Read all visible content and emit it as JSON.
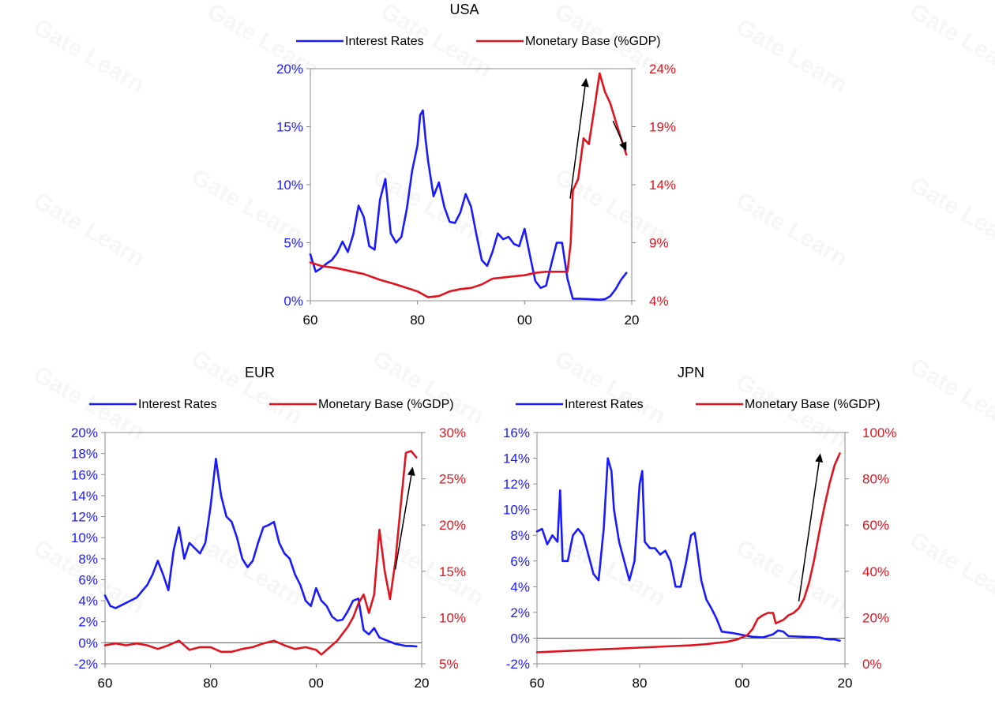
{
  "colors": {
    "interest": "#1a1aff",
    "monetary": "#e0141e",
    "arrow": "#000000",
    "axis": "#8c8c8c"
  },
  "watermark": "Gate Learn",
  "chart_data": [
    {
      "id": "usa",
      "type": "line",
      "title": "USA",
      "legend": [
        "Interest Rates",
        "Monetary Base (%GDP)"
      ],
      "x_ticks": [
        "60",
        "80",
        "00",
        "20"
      ],
      "xlim": [
        1960,
        2020
      ],
      "ylim_left": [
        0,
        20
      ],
      "ylim_right": [
        4,
        24
      ],
      "y_ticks_left": [
        "0%",
        "5%",
        "10%",
        "15%",
        "20%"
      ],
      "y_ticks_right": [
        "4%",
        "9%",
        "14%",
        "19%",
        "24%"
      ],
      "series": [
        {
          "name": "Interest Rates",
          "axis": "left",
          "x": [
            1960,
            1961,
            1962,
            1963,
            1964,
            1965,
            1966,
            1967,
            1968,
            1969,
            1970,
            1971,
            1972,
            1973,
            1974,
            1975,
            1976,
            1977,
            1978,
            1979,
            1980,
            1980.5,
            1981,
            1981.5,
            1982,
            1983,
            1984,
            1985,
            1986,
            1987,
            1988,
            1989,
            1990,
            1991,
            1992,
            1993,
            1994,
            1995,
            1996,
            1997,
            1998,
            1999,
            2000,
            2001,
            2002,
            2003,
            2004,
            2005,
            2006,
            2007,
            2008,
            2009,
            2010,
            2012,
            2014,
            2015,
            2016,
            2017,
            2018,
            2019
          ],
          "values": [
            4,
            2.5,
            2.8,
            3.2,
            3.5,
            4.1,
            5.1,
            4.2,
            5.7,
            8.2,
            7.2,
            4.7,
            4.4,
            8.7,
            10.5,
            5.8,
            5.0,
            5.5,
            7.9,
            11.2,
            13.4,
            16.0,
            16.4,
            14.0,
            12.0,
            9.0,
            10.2,
            8.1,
            6.8,
            6.7,
            7.6,
            9.2,
            8.1,
            5.7,
            3.5,
            3.0,
            4.2,
            5.8,
            5.3,
            5.5,
            4.9,
            4.7,
            6.2,
            3.9,
            1.7,
            1.1,
            1.3,
            3.2,
            5.0,
            5.0,
            1.9,
            0.16,
            0.18,
            0.14,
            0.09,
            0.13,
            0.4,
            1.0,
            1.8,
            2.4
          ]
        },
        {
          "name": "Monetary Base (%GDP)",
          "axis": "right",
          "x": [
            1960,
            1962,
            1965,
            1968,
            1970,
            1973,
            1976,
            1980,
            1982,
            1984,
            1986,
            1988,
            1990,
            1992,
            1994,
            1996,
            1998,
            2000,
            2002,
            2004,
            2006,
            2008,
            2008.6,
            2009,
            2010,
            2011,
            2012,
            2013,
            2014,
            2015,
            2016,
            2017,
            2018,
            2019
          ],
          "values": [
            7.3,
            7.0,
            6.8,
            6.5,
            6.3,
            5.8,
            5.4,
            4.8,
            4.3,
            4.4,
            4.8,
            5.0,
            5.1,
            5.4,
            5.9,
            6.0,
            6.1,
            6.2,
            6.4,
            6.5,
            6.5,
            6.5,
            9.0,
            13.5,
            14.5,
            18.0,
            17.5,
            20.5,
            23.6,
            22.0,
            21.0,
            19.5,
            18.0,
            16.6
          ]
        }
      ],
      "arrows": [
        {
          "from": [
            2008.5,
            12.8
          ],
          "to": [
            2011.5,
            23.2
          ],
          "axis": "right"
        },
        {
          "from": [
            2016.5,
            19.5
          ],
          "to": [
            2019.0,
            16.9
          ],
          "axis": "right"
        }
      ]
    },
    {
      "id": "eur",
      "type": "line",
      "title": "EUR",
      "legend": [
        "Interest Rates",
        "Monetary Base (%GDP)"
      ],
      "x_ticks": [
        "60",
        "80",
        "00",
        "20"
      ],
      "xlim": [
        1960,
        2020
      ],
      "ylim_left": [
        -2,
        20
      ],
      "ylim_right": [
        5,
        30
      ],
      "y_ticks_left": [
        "-2%",
        "0%",
        "2%",
        "4%",
        "6%",
        "8%",
        "10%",
        "12%",
        "14%",
        "16%",
        "18%",
        "20%"
      ],
      "y_ticks_right": [
        "5%",
        "10%",
        "15%",
        "20%",
        "25%",
        "30%"
      ],
      "series": [
        {
          "name": "Interest Rates",
          "axis": "left",
          "x": [
            1960,
            1961,
            1962,
            1964,
            1966,
            1968,
            1969,
            1970,
            1971,
            1972,
            1973,
            1974,
            1975,
            1976,
            1977,
            1978,
            1979,
            1980,
            1981,
            1982,
            1983,
            1984,
            1985,
            1986,
            1987,
            1988,
            1989,
            1990,
            1991,
            1992,
            1993,
            1994,
            1995,
            1996,
            1997,
            1998,
            1999,
            2000,
            2001,
            2002,
            2003,
            2004,
            2005,
            2006,
            2007,
            2008,
            2009,
            2010,
            2011,
            2012,
            2013,
            2014,
            2015,
            2016,
            2017,
            2018,
            2019
          ],
          "values": [
            4.5,
            3.5,
            3.3,
            3.8,
            4.3,
            5.5,
            6.5,
            7.8,
            6.5,
            5.0,
            8.8,
            11.0,
            8.0,
            9.5,
            9.0,
            8.5,
            9.5,
            13.0,
            17.5,
            14.0,
            12.0,
            11.5,
            10.0,
            8.0,
            7.2,
            7.8,
            9.5,
            11.0,
            11.2,
            11.5,
            9.5,
            8.5,
            8.0,
            6.5,
            5.5,
            4.0,
            3.5,
            5.2,
            4.0,
            3.5,
            2.5,
            2.1,
            2.2,
            3.0,
            4.0,
            4.2,
            1.2,
            0.8,
            1.4,
            0.5,
            0.3,
            0.1,
            -0.1,
            -0.2,
            -0.3,
            -0.3,
            -0.35
          ]
        },
        {
          "name": "Monetary Base (%GDP)",
          "axis": "right",
          "x": [
            1960,
            1962,
            1964,
            1966,
            1968,
            1970,
            1972,
            1974,
            1976,
            1978,
            1980,
            1982,
            1984,
            1986,
            1988,
            1990,
            1992,
            1994,
            1996,
            1998,
            2000,
            2001,
            2002,
            2004,
            2006,
            2007,
            2008,
            2009,
            2010,
            2011,
            2012,
            2013,
            2014,
            2015,
            2016,
            2017,
            2018,
            2019
          ],
          "values": [
            7.0,
            7.2,
            7.0,
            7.2,
            7.0,
            6.6,
            7.0,
            7.5,
            6.5,
            6.8,
            6.8,
            6.3,
            6.3,
            6.6,
            6.8,
            7.2,
            7.5,
            7.0,
            6.6,
            6.8,
            6.5,
            6.0,
            6.5,
            7.5,
            9.0,
            10.0,
            11.5,
            12.5,
            10.5,
            12.5,
            19.5,
            15.0,
            12.0,
            16.0,
            22.0,
            27.8,
            28.0,
            27.3
          ]
        }
      ],
      "arrows": [
        {
          "from": [
            2015.0,
            15.2
          ],
          "to": [
            2018.3,
            26.3
          ],
          "axis": "right"
        }
      ]
    },
    {
      "id": "jpn",
      "type": "line",
      "title": "JPN",
      "legend": [
        "Interest Rates",
        "Monetary Base (%GDP)"
      ],
      "x_ticks": [
        "60",
        "80",
        "00",
        "20"
      ],
      "xlim": [
        1960,
        2020
      ],
      "ylim_left": [
        -2,
        16
      ],
      "ylim_right": [
        0,
        100
      ],
      "y_ticks_left": [
        "-2%",
        "0%",
        "2%",
        "4%",
        "6%",
        "8%",
        "10%",
        "12%",
        "14%",
        "16%"
      ],
      "y_ticks_right": [
        "0%",
        "20%",
        "40%",
        "60%",
        "80%",
        "100%"
      ],
      "series": [
        {
          "name": "Interest Rates",
          "axis": "left",
          "x": [
            1960,
            1961,
            1962,
            1963,
            1964,
            1964.5,
            1965,
            1966,
            1967,
            1968,
            1969,
            1970,
            1971,
            1972,
            1973,
            1973.8,
            1974.5,
            1975,
            1976,
            1977,
            1978,
            1979,
            1980,
            1980.5,
            1981,
            1982,
            1983,
            1984,
            1985,
            1986,
            1987,
            1988,
            1989,
            1990,
            1990.7,
            1991,
            1992,
            1993,
            1994,
            1995,
            1996,
            1998,
            2000,
            2002,
            2004,
            2006,
            2007,
            2008,
            2009,
            2012,
            2015,
            2016,
            2017,
            2018,
            2019
          ],
          "values": [
            8.3,
            8.5,
            7.3,
            8.0,
            7.5,
            11.5,
            6.0,
            6.0,
            8.0,
            8.5,
            8.0,
            6.5,
            5.0,
            4.5,
            8.5,
            14.0,
            13.0,
            10.0,
            7.5,
            6.0,
            4.5,
            6.0,
            12.0,
            13.0,
            7.5,
            7.0,
            7.0,
            6.5,
            6.8,
            6.0,
            4.0,
            4.0,
            5.8,
            8.0,
            8.2,
            7.5,
            4.5,
            3.0,
            2.3,
            1.5,
            0.5,
            0.4,
            0.25,
            0.1,
            0.05,
            0.3,
            0.6,
            0.5,
            0.15,
            0.1,
            0.05,
            -0.05,
            -0.1,
            -0.1,
            -0.2
          ]
        },
        {
          "name": "Monetary Base (%GDP)",
          "axis": "right",
          "x": [
            1960,
            1965,
            1970,
            1975,
            1980,
            1985,
            1990,
            1993,
            1995,
            1997,
            1999,
            2001,
            2002,
            2003,
            2004,
            2005,
            2006,
            2006.5,
            2007,
            2008,
            2009,
            2010,
            2011,
            2012,
            2013,
            2014,
            2015,
            2016,
            2017,
            2018,
            2019
          ],
          "values": [
            5.0,
            5.5,
            6.0,
            6.5,
            7.0,
            7.5,
            8.0,
            8.5,
            9.0,
            9.5,
            10.5,
            12.5,
            15.0,
            19.5,
            21.0,
            22.0,
            22.0,
            17.5,
            18.0,
            19.0,
            21.0,
            22.0,
            24.0,
            28.0,
            35.0,
            45.0,
            57.0,
            68.0,
            78.0,
            86.0,
            91.0
          ]
        }
      ],
      "arrows": [
        {
          "from": [
            2011.0,
            27.0
          ],
          "to": [
            2015.2,
            91.0
          ],
          "axis": "right"
        }
      ]
    }
  ]
}
